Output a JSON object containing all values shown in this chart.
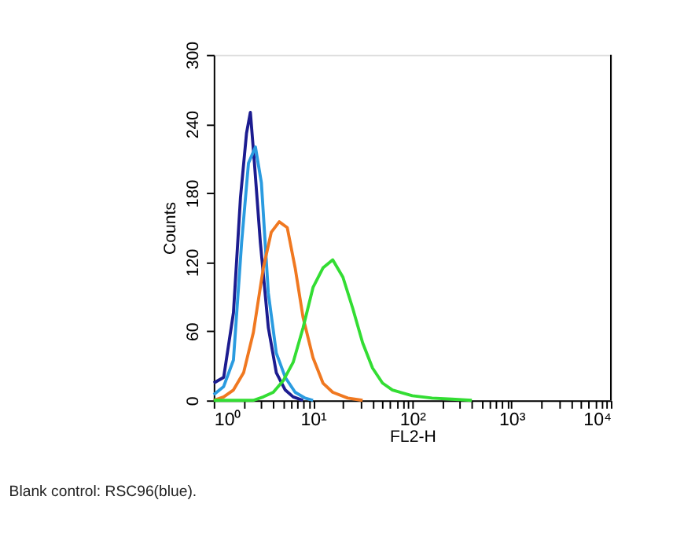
{
  "chart_data": {
    "type": "line",
    "xlabel": "FL2-H",
    "ylabel": "Counts",
    "log": "x",
    "grid": false,
    "annotations": [
      "Blank control: RSC96(blue)."
    ],
    "xlim": [
      1,
      10000
    ],
    "ylim": [
      0,
      300
    ],
    "xticks": [
      {
        "value": 1,
        "label": "10⁰"
      },
      {
        "value": 2,
        "label": null
      },
      {
        "value": 3,
        "label": null
      },
      {
        "value": 4,
        "label": null
      },
      {
        "value": 5,
        "label": null
      },
      {
        "value": 6,
        "label": null
      },
      {
        "value": 7,
        "label": null
      },
      {
        "value": 8,
        "label": null
      },
      {
        "value": 9,
        "label": null
      },
      {
        "value": 10,
        "label": "10¹"
      },
      {
        "value": 20,
        "label": null
      },
      {
        "value": 30,
        "label": null
      },
      {
        "value": 40,
        "label": null
      },
      {
        "value": 50,
        "label": null
      },
      {
        "value": 60,
        "label": null
      },
      {
        "value": 70,
        "label": null
      },
      {
        "value": 80,
        "label": null
      },
      {
        "value": 90,
        "label": null
      },
      {
        "value": 100,
        "label": "10²"
      },
      {
        "value": 200,
        "label": null
      },
      {
        "value": 300,
        "label": null
      },
      {
        "value": 400,
        "label": null
      },
      {
        "value": 500,
        "label": null
      },
      {
        "value": 600,
        "label": null
      },
      {
        "value": 700,
        "label": null
      },
      {
        "value": 800,
        "label": null
      },
      {
        "value": 900,
        "label": null
      },
      {
        "value": 1000,
        "label": "10³"
      },
      {
        "value": 2000,
        "label": null
      },
      {
        "value": 3000,
        "label": null
      },
      {
        "value": 4000,
        "label": null
      },
      {
        "value": 5000,
        "label": null
      },
      {
        "value": 6000,
        "label": null
      },
      {
        "value": 7000,
        "label": null
      },
      {
        "value": 8000,
        "label": null
      },
      {
        "value": 9000,
        "label": null
      },
      {
        "value": 10000,
        "label": "10⁴"
      }
    ],
    "yticks": [
      0,
      60,
      120,
      180,
      240,
      300
    ],
    "series": [
      {
        "color": "#1c1c90",
        "x": [
          1,
          1.26,
          1.58,
          1.86,
          2.14,
          2.34,
          2.57,
          2.95,
          3.55,
          4.27,
          5.25,
          6.31,
          7.94
        ],
        "values": [
          15,
          20,
          76,
          176,
          232,
          250,
          206,
          137,
          63,
          24,
          9,
          3,
          0
        ]
      },
      {
        "color": "#2a9be0",
        "x": [
          1,
          1.26,
          1.58,
          1.91,
          2.24,
          2.63,
          3.02,
          3.55,
          4.27,
          5.25,
          6.61,
          8.32,
          10
        ],
        "values": [
          5,
          12,
          35,
          137,
          206,
          220,
          189,
          93,
          41,
          20,
          7,
          2,
          0
        ]
      },
      {
        "color": "#f07820",
        "x": [
          1,
          1.26,
          1.58,
          2,
          2.51,
          3.16,
          3.8,
          4.57,
          5.5,
          6.61,
          7.94,
          10,
          12.6,
          15.8,
          22.4,
          31.6
        ],
        "values": [
          0,
          3,
          9,
          24,
          59,
          115,
          146,
          155,
          150,
          115,
          72,
          37,
          15,
          7,
          2,
          0
        ]
      },
      {
        "color": "#33dd33",
        "x": [
          1,
          2.51,
          3.16,
          3.98,
          5.01,
          6.31,
          7.94,
          10,
          12.6,
          15.8,
          20,
          25.1,
          31.6,
          39.8,
          50.1,
          63.1,
          100,
          158,
          251,
          398
        ],
        "values": [
          0,
          0,
          3,
          7,
          17,
          33,
          63,
          98,
          115,
          122,
          107,
          80,
          50,
          28,
          15,
          9,
          4,
          2,
          1,
          0
        ]
      }
    ]
  }
}
